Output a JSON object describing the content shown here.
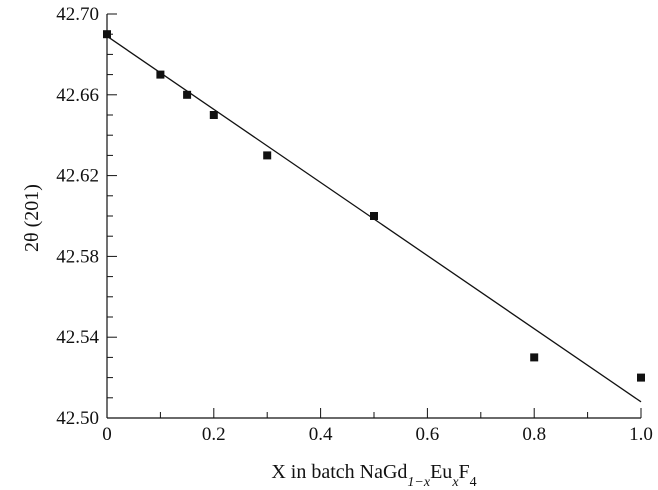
{
  "chart_data": {
    "type": "scatter",
    "title": "",
    "xlabel": {
      "parts": [
        {
          "text": "X in batch NaGd"
        },
        {
          "text": "1−x",
          "sub": true,
          "italic": true
        },
        {
          "text": "Eu"
        },
        {
          "text": "x",
          "sub": true,
          "italic": true
        },
        {
          "text": "F"
        },
        {
          "text": "4",
          "sub": true
        }
      ]
    },
    "ylabel": "2θ (201)",
    "xlim": [
      0,
      1.0
    ],
    "ylim": [
      42.5,
      42.7
    ],
    "xticks": [
      "0",
      "0.2",
      "0.4",
      "0.6",
      "0.8",
      "1.0"
    ],
    "yticks": [
      "42.50",
      "42.54",
      "42.58",
      "42.62",
      "42.66",
      "42.70"
    ],
    "series": [
      {
        "marker": "square",
        "color": "#111111",
        "points": [
          {
            "x": 0,
            "y": 42.69
          },
          {
            "x": 0.1,
            "y": 42.67
          },
          {
            "x": 0.15,
            "y": 42.66
          },
          {
            "x": 0.2,
            "y": 42.65
          },
          {
            "x": 0.3,
            "y": 42.63
          },
          {
            "x": 0.5,
            "y": 42.6
          },
          {
            "x": 0.8,
            "y": 42.53
          },
          {
            "x": 1.0,
            "y": 42.52
          }
        ]
      }
    ],
    "fit_line": {
      "x": [
        0,
        1.0
      ],
      "y": [
        42.689,
        42.508
      ],
      "color": "#111111"
    },
    "grid": false,
    "legend": "none"
  }
}
